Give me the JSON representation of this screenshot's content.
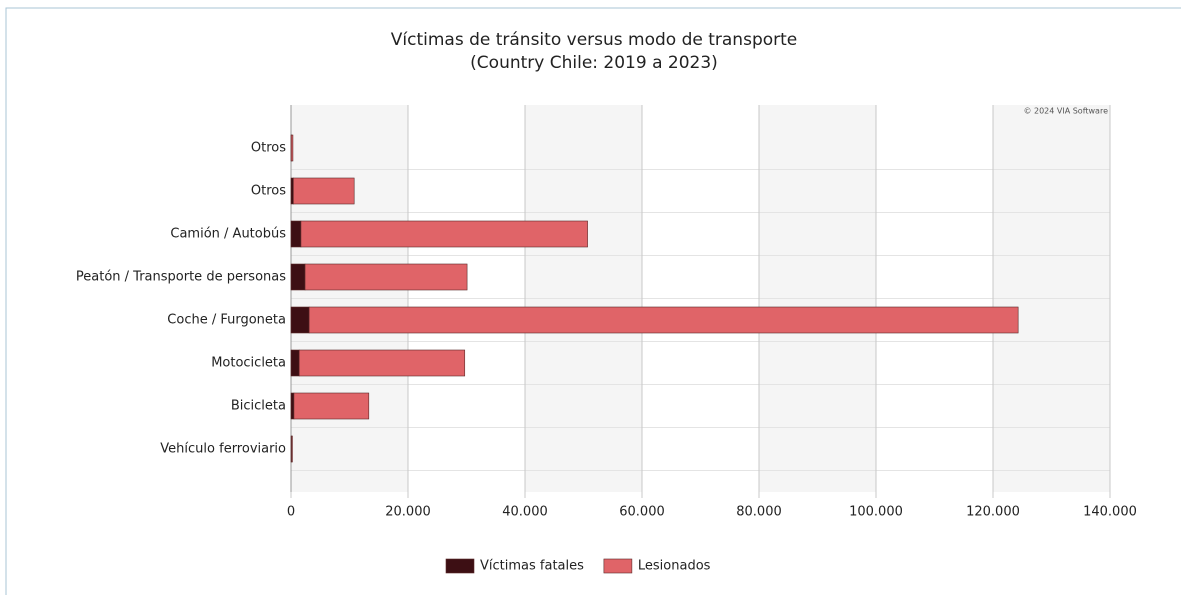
{
  "chart_data": {
    "type": "stacked_barh",
    "title": "Víctimas de tránsito versus modo de transporte",
    "subtitle": "(Country Chile: 2019 a 2023)",
    "watermark": "© 2024 VIA Software",
    "categories": [
      "Otros",
      "Otros",
      "Camión / Autobús",
      "Peatón / Transporte de personas",
      "Coche / Furgoneta",
      "Motocicleta",
      "Bicicleta",
      "Vehículo ferroviario"
    ],
    "series": [
      {
        "name": "Víctimas fatales",
        "color": "#3d0f14",
        "values": [
          30,
          400,
          1700,
          2400,
          3100,
          1400,
          500,
          100
        ]
      },
      {
        "name": "Lesionados",
        "color": "#e06468",
        "values": [
          300,
          10400,
          49000,
          27700,
          121200,
          28300,
          12800,
          150
        ]
      }
    ],
    "xlim": [
      0,
      140000
    ],
    "xticks": [
      0,
      {
        "value": 20000,
        "label": "20.000"
      },
      {
        "value": 40000,
        "label": "40.000"
      },
      {
        "value": 60000,
        "label": "60.000"
      },
      {
        "value": 80000,
        "label": "80.000"
      },
      {
        "value": 100000,
        "label": "100.000"
      },
      {
        "value": 120000,
        "label": "120.000"
      },
      {
        "value": 140000,
        "label": "140.000"
      }
    ],
    "grid": true,
    "legend": "bottom"
  }
}
